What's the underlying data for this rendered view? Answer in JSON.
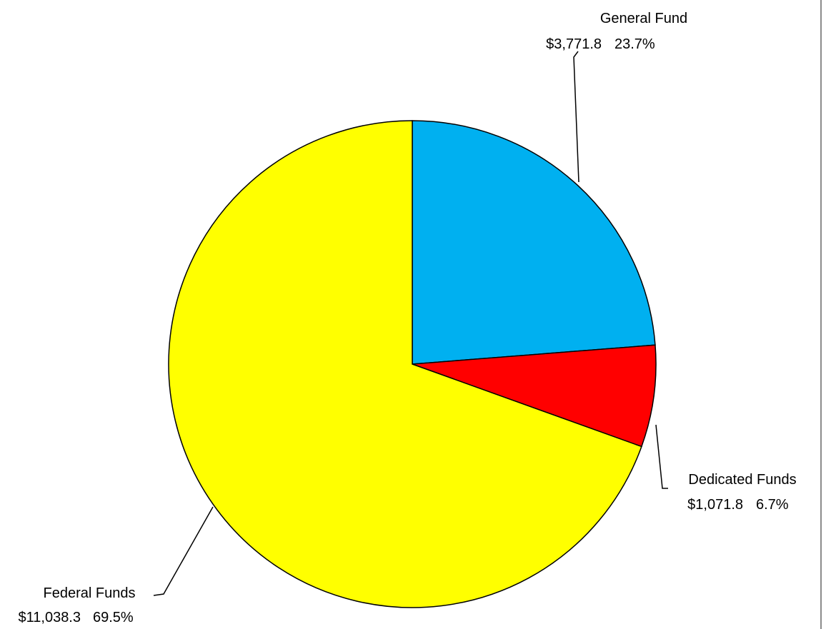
{
  "chart_data": {
    "type": "pie",
    "title": "",
    "slices": [
      {
        "name": "General Fund",
        "value": 3771.8,
        "value_label": "$3,771.8",
        "percent": 23.7,
        "percent_label": "23.7%",
        "color": "#00B0F0"
      },
      {
        "name": "Dedicated Funds",
        "value": 1071.8,
        "value_label": "$1,071.8",
        "percent": 6.7,
        "percent_label": "6.7%",
        "color": "#FF0000"
      },
      {
        "name": "Federal Funds",
        "value": 11038.3,
        "value_label": "$11,038.3",
        "percent": 69.5,
        "percent_label": "69.5%",
        "color": "#FFFF00"
      }
    ],
    "start_angle": "12 o'clock",
    "direction": "clockwise",
    "legend": "none"
  }
}
